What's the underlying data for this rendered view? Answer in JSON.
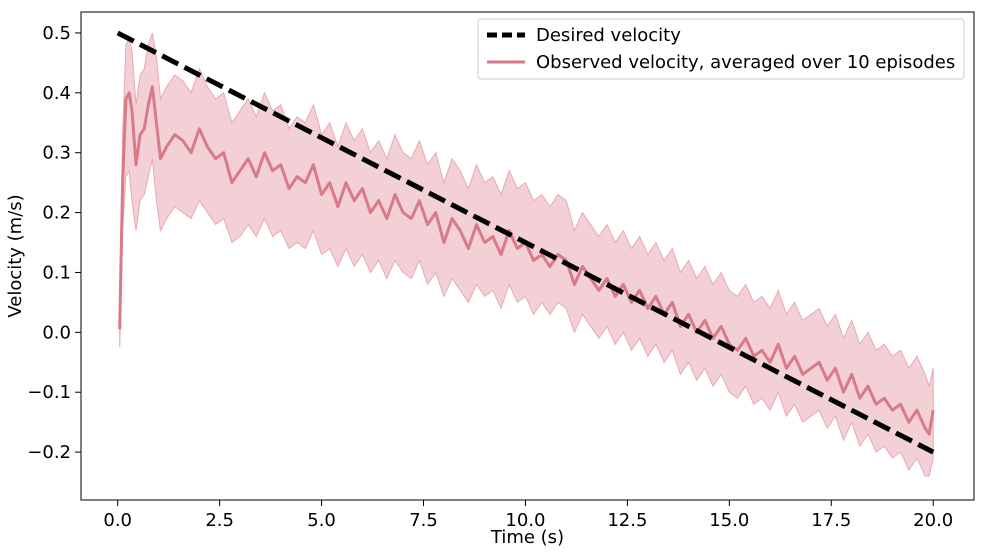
{
  "chart_data": {
    "type": "line",
    "xlabel": "Time (s)",
    "ylabel": "Velocity (m/s)",
    "xlim": [
      -0.9,
      21.0
    ],
    "ylim": [
      -0.28,
      0.535
    ],
    "x_ticks": [
      0.0,
      2.5,
      5.0,
      7.5,
      10.0,
      12.5,
      15.0,
      17.5,
      20.0
    ],
    "x_tick_labels": [
      "0.0",
      "2.5",
      "5.0",
      "7.5",
      "10.0",
      "12.5",
      "15.0",
      "17.5",
      "20.0"
    ],
    "y_ticks": [
      -0.2,
      -0.1,
      0.0,
      0.1,
      0.2,
      0.3,
      0.4,
      0.5
    ],
    "y_tick_labels": [
      "−0.2",
      "−0.1",
      "0.0",
      "0.1",
      "0.2",
      "0.3",
      "0.4",
      "0.5"
    ],
    "grid": false,
    "legend_position": "top-right",
    "colors": {
      "desired": "#000000",
      "observed": "#d87a88",
      "band": "#e8a9b3"
    },
    "series": [
      {
        "name": "Desired velocity",
        "style": "dashed",
        "x": [
          0.0,
          20.0
        ],
        "y": [
          0.5,
          -0.2
        ]
      },
      {
        "name": "Observed velocity, averaged over 10 episodes",
        "style": "solid",
        "x": [
          0.05,
          0.12,
          0.2,
          0.28,
          0.35,
          0.45,
          0.55,
          0.65,
          0.75,
          0.85,
          0.95,
          1.05,
          1.2,
          1.4,
          1.6,
          1.8,
          2.0,
          2.2,
          2.4,
          2.6,
          2.8,
          3.0,
          3.2,
          3.4,
          3.6,
          3.8,
          4.0,
          4.2,
          4.4,
          4.6,
          4.8,
          5.0,
          5.2,
          5.4,
          5.6,
          5.8,
          6.0,
          6.2,
          6.4,
          6.6,
          6.8,
          7.0,
          7.2,
          7.4,
          7.6,
          7.8,
          8.0,
          8.2,
          8.4,
          8.6,
          8.8,
          9.0,
          9.2,
          9.4,
          9.6,
          9.8,
          10.0,
          10.2,
          10.4,
          10.6,
          10.8,
          11.0,
          11.2,
          11.4,
          11.6,
          11.8,
          12.0,
          12.2,
          12.4,
          12.6,
          12.8,
          13.0,
          13.2,
          13.4,
          13.6,
          13.8,
          14.0,
          14.2,
          14.4,
          14.6,
          14.8,
          15.0,
          15.2,
          15.4,
          15.6,
          15.8,
          16.0,
          16.2,
          16.4,
          16.6,
          16.8,
          17.0,
          17.2,
          17.4,
          17.6,
          17.8,
          18.0,
          18.2,
          18.4,
          18.6,
          18.8,
          19.0,
          19.2,
          19.4,
          19.6,
          19.8,
          19.9,
          20.0
        ],
        "y": [
          0.005,
          0.25,
          0.39,
          0.4,
          0.37,
          0.28,
          0.33,
          0.34,
          0.38,
          0.41,
          0.35,
          0.29,
          0.31,
          0.33,
          0.32,
          0.3,
          0.34,
          0.31,
          0.29,
          0.3,
          0.25,
          0.27,
          0.29,
          0.26,
          0.3,
          0.27,
          0.28,
          0.24,
          0.26,
          0.25,
          0.28,
          0.23,
          0.25,
          0.21,
          0.25,
          0.22,
          0.24,
          0.2,
          0.22,
          0.19,
          0.23,
          0.2,
          0.19,
          0.22,
          0.18,
          0.2,
          0.15,
          0.19,
          0.17,
          0.14,
          0.18,
          0.15,
          0.16,
          0.13,
          0.17,
          0.14,
          0.15,
          0.12,
          0.13,
          0.11,
          0.13,
          0.12,
          0.08,
          0.11,
          0.09,
          0.07,
          0.09,
          0.06,
          0.08,
          0.05,
          0.07,
          0.04,
          0.06,
          0.03,
          0.05,
          0.01,
          0.03,
          0.0,
          0.02,
          -0.01,
          0.01,
          -0.02,
          -0.03,
          -0.01,
          -0.04,
          -0.03,
          -0.05,
          -0.02,
          -0.06,
          -0.04,
          -0.07,
          -0.06,
          -0.05,
          -0.08,
          -0.06,
          -0.1,
          -0.07,
          -0.11,
          -0.09,
          -0.12,
          -0.11,
          -0.13,
          -0.12,
          -0.15,
          -0.13,
          -0.16,
          -0.17,
          -0.13
        ],
        "band_lower": [
          -0.025,
          0.17,
          0.26,
          0.27,
          0.22,
          0.17,
          0.22,
          0.23,
          0.26,
          0.29,
          0.22,
          0.17,
          0.19,
          0.21,
          0.2,
          0.19,
          0.22,
          0.2,
          0.18,
          0.19,
          0.15,
          0.16,
          0.18,
          0.16,
          0.19,
          0.16,
          0.17,
          0.14,
          0.15,
          0.14,
          0.17,
          0.13,
          0.14,
          0.11,
          0.14,
          0.11,
          0.13,
          0.1,
          0.12,
          0.09,
          0.12,
          0.1,
          0.09,
          0.12,
          0.08,
          0.1,
          0.06,
          0.09,
          0.07,
          0.05,
          0.08,
          0.06,
          0.07,
          0.04,
          0.08,
          0.05,
          0.06,
          0.03,
          0.05,
          0.03,
          0.05,
          0.04,
          0.0,
          0.03,
          0.01,
          -0.01,
          0.01,
          -0.02,
          0.0,
          -0.03,
          -0.01,
          -0.04,
          -0.02,
          -0.05,
          -0.03,
          -0.07,
          -0.05,
          -0.08,
          -0.06,
          -0.09,
          -0.07,
          -0.1,
          -0.11,
          -0.09,
          -0.12,
          -0.11,
          -0.13,
          -0.1,
          -0.14,
          -0.12,
          -0.15,
          -0.14,
          -0.13,
          -0.16,
          -0.14,
          -0.18,
          -0.15,
          -0.19,
          -0.17,
          -0.2,
          -0.19,
          -0.21,
          -0.2,
          -0.23,
          -0.21,
          -0.24,
          -0.24,
          -0.21
        ],
        "band_upper": [
          0.03,
          0.33,
          0.48,
          0.49,
          0.47,
          0.38,
          0.43,
          0.44,
          0.48,
          0.5,
          0.46,
          0.39,
          0.41,
          0.43,
          0.42,
          0.4,
          0.44,
          0.41,
          0.39,
          0.4,
          0.35,
          0.37,
          0.39,
          0.36,
          0.4,
          0.37,
          0.38,
          0.34,
          0.36,
          0.35,
          0.38,
          0.33,
          0.35,
          0.31,
          0.35,
          0.32,
          0.34,
          0.3,
          0.32,
          0.29,
          0.33,
          0.3,
          0.29,
          0.32,
          0.28,
          0.3,
          0.25,
          0.29,
          0.27,
          0.24,
          0.28,
          0.25,
          0.26,
          0.23,
          0.27,
          0.24,
          0.25,
          0.22,
          0.23,
          0.21,
          0.23,
          0.22,
          0.17,
          0.2,
          0.18,
          0.16,
          0.18,
          0.15,
          0.17,
          0.14,
          0.16,
          0.13,
          0.15,
          0.12,
          0.14,
          0.1,
          0.12,
          0.09,
          0.11,
          0.08,
          0.1,
          0.07,
          0.06,
          0.08,
          0.05,
          0.06,
          0.04,
          0.07,
          0.03,
          0.05,
          0.02,
          0.03,
          0.04,
          0.01,
          0.03,
          -0.01,
          0.02,
          -0.02,
          0.0,
          -0.03,
          -0.02,
          -0.04,
          -0.03,
          -0.06,
          -0.04,
          -0.07,
          -0.09,
          -0.06
        ]
      }
    ]
  }
}
